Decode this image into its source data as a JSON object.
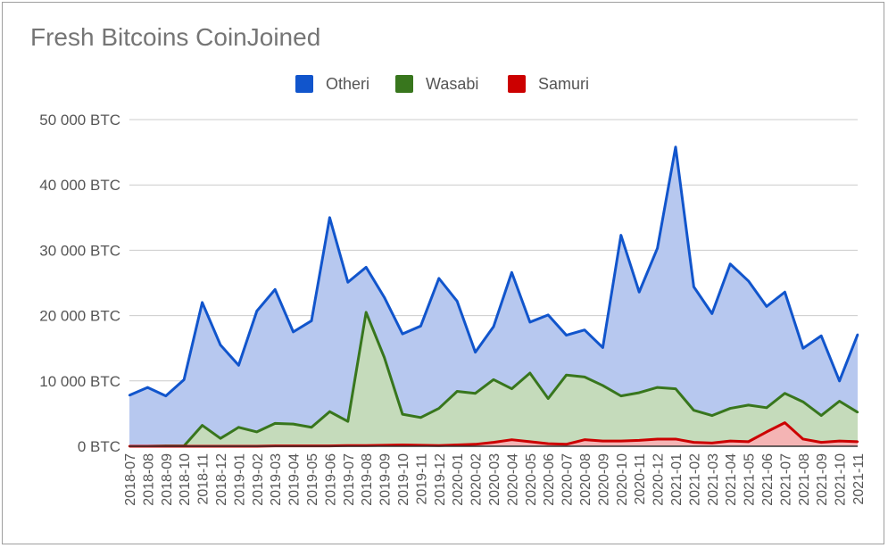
{
  "chart_data": {
    "type": "area",
    "title": "Fresh Bitcoins CoinJoined",
    "xlabel": "",
    "ylabel": "",
    "ylim": [
      0,
      50000
    ],
    "yticks": [
      {
        "value": 0,
        "label": "0 BTC"
      },
      {
        "value": 10000,
        "label": "10 000 BTC"
      },
      {
        "value": 20000,
        "label": "20 000 BTC"
      },
      {
        "value": 30000,
        "label": "30 000 BTC"
      },
      {
        "value": 40000,
        "label": "40 000 BTC"
      },
      {
        "value": 50000,
        "label": "50 000 BTC"
      }
    ],
    "grid": true,
    "legend_position": "top",
    "categories": [
      "2018-07",
      "2018-08",
      "2018-09",
      "2018-10",
      "2018-11",
      "2018-12",
      "2019-01",
      "2019-02",
      "2019-03",
      "2019-04",
      "2019-05",
      "2019-06",
      "2019-07",
      "2019-08",
      "2019-09",
      "2019-10",
      "2019-11",
      "2019-12",
      "2020-01",
      "2020-02",
      "2020-03",
      "2020-04",
      "2020-05",
      "2020-06",
      "2020-07",
      "2020-08",
      "2020-09",
      "2020-10",
      "2020-11",
      "2020-12",
      "2021-01",
      "2021-02",
      "2021-03",
      "2021-04",
      "2021-05",
      "2021-06",
      "2021-07",
      "2021-08",
      "2021-09",
      "2021-10",
      "2021-11"
    ],
    "series": [
      {
        "name": "Otheri",
        "color": "#1155cc",
        "fill": "#b7c8ef",
        "values": [
          7800,
          9000,
          7700,
          10200,
          22000,
          15500,
          12400,
          20700,
          24000,
          17500,
          19200,
          35000,
          25100,
          27400,
          22800,
          17200,
          18400,
          25700,
          22200,
          14400,
          18300,
          26600,
          19000,
          20100,
          17000,
          17800,
          15100,
          32300,
          23600,
          30300,
          45800,
          24400,
          20300,
          27900,
          25300,
          21400,
          23600,
          15000,
          16900,
          10000,
          17100
        ]
      },
      {
        "name": "Wasabi",
        "color": "#38761d",
        "fill": "#c5dbbb",
        "values": [
          0,
          0,
          50,
          50,
          3200,
          1200,
          2900,
          2200,
          3500,
          3400,
          2900,
          5300,
          3800,
          20500,
          13600,
          4900,
          4400,
          5800,
          8400,
          8100,
          10200,
          8800,
          11200,
          7300,
          10900,
          10600,
          9300,
          7700,
          8200,
          9000,
          8800,
          5500,
          4700,
          5800,
          6300,
          5900,
          8100,
          6800,
          4700,
          6900,
          5200
        ]
      },
      {
        "name": "Samuri",
        "color": "#cc0000",
        "fill": "#f4b4b4",
        "values": [
          0,
          0,
          0,
          0,
          0,
          0,
          0,
          0,
          50,
          50,
          50,
          50,
          100,
          100,
          150,
          200,
          150,
          100,
          200,
          300,
          600,
          1000,
          700,
          400,
          300,
          1000,
          800,
          800,
          900,
          1100,
          1100,
          600,
          500,
          800,
          700,
          2200,
          3600,
          1100,
          600,
          800,
          700
        ]
      }
    ]
  }
}
